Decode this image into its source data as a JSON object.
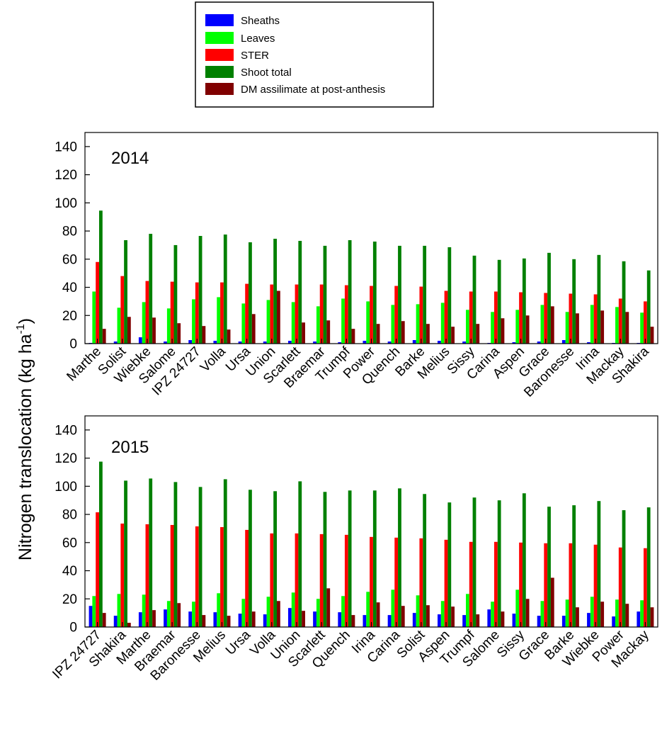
{
  "colors": {
    "Sheaths": "#0000ff",
    "Leaves": "#00ff00",
    "STER": "#ff0000",
    "Shoot total": "#008000",
    "DM assilimate at post-anthesis": "#800000"
  },
  "chart_data": {
    "type": "bar",
    "ylabel": "Nitrogen translocation (kg ha",
    "ylabel_sup": "-1",
    "ylabel_close": ")",
    "legend": {
      "position": "top-center",
      "entries": [
        "Sheaths",
        "Leaves",
        "STER",
        "Shoot total",
        "DM assilimate at post-anthesis"
      ]
    },
    "ylim": [
      0,
      150
    ],
    "yticks": [
      0,
      20,
      40,
      60,
      80,
      100,
      120,
      140
    ],
    "panels": [
      {
        "title": "2014",
        "categories": [
          "Marthe",
          "Solist",
          "Wiebke",
          "Salome",
          "IPZ 24727",
          "Volla",
          "Ursa",
          "Union",
          "Scarlett",
          "Braemar",
          "Trumpf",
          "Power",
          "Quench",
          "Barke",
          "Melius",
          "Sissy",
          "Carina",
          "Aspen",
          "Grace",
          "Baronesse",
          "Irina",
          "Mackay",
          "Shakira"
        ],
        "series": [
          {
            "name": "Sheaths",
            "values": [
              0.5,
              1.5,
              4.5,
              1.5,
              2.5,
              2,
              1.5,
              1.5,
              2,
              1.5,
              1,
              2,
              1.5,
              2.5,
              2,
              1.5,
              0.5,
              1,
              1.5,
              2.5,
              1,
              0.5,
              0.5
            ]
          },
          {
            "name": "Leaves",
            "values": [
              37,
              25.5,
              29.5,
              25,
              31.5,
              33,
              28.5,
              31,
              29.5,
              26.5,
              32,
              30,
              27.5,
              28,
              29,
              24,
              22.5,
              24,
              27.5,
              22.5,
              27.5,
              26,
              22
            ]
          },
          {
            "name": "STER",
            "values": [
              58,
              48,
              44.5,
              44,
              43.5,
              43.5,
              42.5,
              42,
              42,
              42,
              41.5,
              41,
              41,
              40.5,
              37.5,
              37,
              37,
              36.5,
              36,
              35.5,
              35,
              32,
              30
            ]
          },
          {
            "name": "Shoot total",
            "values": [
              94.5,
              73.5,
              78,
              70,
              76.5,
              77.5,
              72,
              74.5,
              73,
              69.5,
              73.5,
              72.5,
              69.5,
              69.5,
              68.5,
              62.5,
              59.5,
              60.5,
              64.5,
              60,
              63,
              58.5,
              52
            ]
          },
          {
            "name": "DM assilimate at post-anthesis",
            "values": [
              10.5,
              19,
              18.5,
              14.5,
              12.5,
              10,
              21,
              37.5,
              15,
              16.5,
              10.5,
              14,
              16,
              14,
              12,
              14,
              18,
              20,
              26.5,
              21.5,
              23.5,
              22.5,
              12
            ]
          }
        ]
      },
      {
        "title": "2015",
        "categories": [
          "IPZ 24727",
          "Shakira",
          "Marthe",
          "Braemar",
          "Baronesse",
          "Melius",
          "Ursa",
          "Volla",
          "Union",
          "Scarlett",
          "Quench",
          "Irina",
          "Carina",
          "Solist",
          "Aspen",
          "Trumpf",
          "Salome",
          "Sissy",
          "Grace",
          "Barke",
          "Wiebke",
          "Power",
          "Mackay"
        ],
        "series": [
          {
            "name": "Sheaths",
            "values": [
              15,
              8,
              10.5,
              12.5,
              11,
              10.5,
              9.5,
              9,
              13.5,
              11,
              10.5,
              8.5,
              8.5,
              10,
              9,
              8.5,
              12.5,
              9.5,
              8,
              8,
              10,
              7.5,
              11
            ]
          },
          {
            "name": "Leaves",
            "values": [
              22,
              23.5,
              23,
              18.5,
              18,
              24,
              20,
              21.5,
              24.5,
              20,
              22,
              25,
              26.5,
              22.5,
              18.5,
              23.5,
              18,
              26.5,
              18.5,
              19.5,
              21.5,
              19.5,
              19
            ]
          },
          {
            "name": "STER",
            "values": [
              81.5,
              73.5,
              73,
              72.5,
              71.5,
              71,
              69,
              66.5,
              66.5,
              66,
              65.5,
              64,
              63.5,
              63,
              62,
              60.5,
              60.5,
              60,
              59.5,
              59.5,
              58.5,
              56.5,
              56
            ]
          },
          {
            "name": "Shoot total",
            "values": [
              117.5,
              104,
              105.5,
              103,
              99.5,
              105,
              97.5,
              96.5,
              103.5,
              96,
              97,
              97,
              98.5,
              94.5,
              88.5,
              92,
              90,
              95,
              85.5,
              86.5,
              89.5,
              83,
              85
            ]
          },
          {
            "name": "DM assilimate at post-anthesis",
            "values": [
              10,
              3,
              12,
              17,
              8.5,
              8,
              11,
              18.5,
              11.5,
              27.5,
              8.5,
              17.5,
              15,
              15.5,
              14.5,
              9,
              11,
              20,
              35,
              14,
              18,
              16.5,
              14
            ]
          }
        ]
      }
    ]
  }
}
